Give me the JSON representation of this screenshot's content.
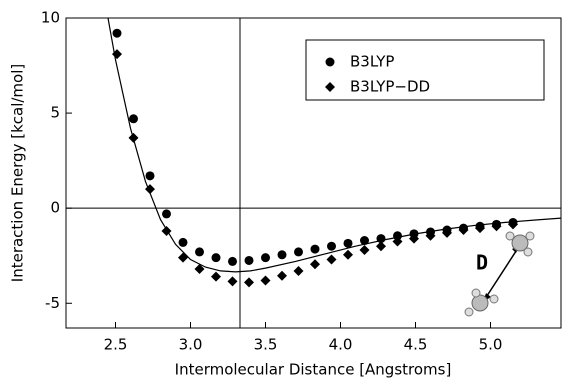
{
  "chart_data": {
    "type": "scatter",
    "x_label": "Intermolecular Distance [Angstroms]",
    "y_label": "Interaction Energy [kcal/mol]",
    "annotation": "D",
    "xlim": [
      2.17,
      5.47
    ],
    "ylim": [
      -6.3,
      10
    ],
    "xticks": [
      2.5,
      {
        "value": 3,
        "label": "3.0"
      },
      3.5,
      {
        "value": 4,
        "label": "4.0"
      },
      4.5,
      {
        "value": 5,
        "label": "5.0"
      }
    ],
    "yticks": [
      -5,
      0,
      5,
      10
    ],
    "vline": 3.33,
    "series": [
      {
        "name": "B3LYP",
        "marker": "circle",
        "color": "#000000",
        "x": [
          2.51,
          2.62,
          2.73,
          2.84,
          2.95,
          3.06,
          3.17,
          3.28,
          3.39,
          3.5,
          3.61,
          3.72,
          3.83,
          3.94,
          4.05,
          4.16,
          4.27,
          4.38,
          4.49,
          4.6,
          4.71,
          4.82,
          4.93,
          5.04,
          5.15
        ],
        "values": [
          9.2,
          4.7,
          1.7,
          -0.3,
          -1.8,
          -2.3,
          -2.6,
          -2.8,
          -2.75,
          -2.6,
          -2.45,
          -2.3,
          -2.15,
          -2.0,
          -1.85,
          -1.7,
          -1.6,
          -1.45,
          -1.35,
          -1.25,
          -1.15,
          -1.05,
          -0.95,
          -0.85,
          -0.75
        ]
      },
      {
        "name": "B3LYP−DD",
        "marker": "diamond",
        "color": "#000000",
        "x": [
          2.51,
          2.62,
          2.73,
          2.84,
          2.95,
          3.06,
          3.17,
          3.28,
          3.39,
          3.5,
          3.61,
          3.72,
          3.83,
          3.94,
          4.05,
          4.16,
          4.27,
          4.38,
          4.49,
          4.6,
          4.71,
          4.82,
          4.93,
          5.04,
          5.15
        ],
        "values": [
          8.1,
          3.7,
          1.0,
          -1.2,
          -2.6,
          -3.2,
          -3.6,
          -3.85,
          -3.9,
          -3.8,
          -3.55,
          -3.3,
          -2.95,
          -2.7,
          -2.45,
          -2.2,
          -2.0,
          -1.75,
          -1.6,
          -1.45,
          -1.3,
          -1.15,
          -1.05,
          -0.95,
          -0.85
        ]
      }
    ],
    "fit": {
      "color": "#000000",
      "x": [
        2.45,
        2.5,
        2.6,
        2.7,
        2.8,
        2.9,
        3.0,
        3.1,
        3.2,
        3.3,
        3.4,
        3.5,
        3.7,
        3.9,
        4.1,
        4.3,
        4.5,
        4.7,
        4.9,
        5.1,
        5.3,
        5.47
      ],
      "values": [
        10,
        7.8,
        4.2,
        1.4,
        -0.6,
        -1.9,
        -2.7,
        -3.1,
        -3.3,
        -3.35,
        -3.3,
        -3.15,
        -2.8,
        -2.4,
        -2.0,
        -1.65,
        -1.35,
        -1.1,
        -0.9,
        -0.75,
        -0.62,
        -0.52
      ]
    }
  }
}
